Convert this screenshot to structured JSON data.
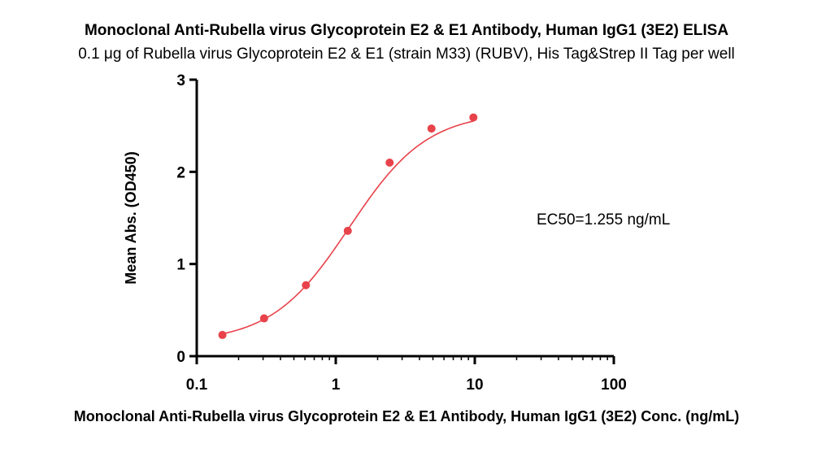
{
  "chart_data": {
    "type": "scatter",
    "title": "Monoclonal Anti-Rubella virus Glycoprotein E2 & E1 Antibody, Human IgG1 (3E2) ELISA",
    "subtitle": "0.1 μg of Rubella virus Glycoprotein E2 & E1 (strain M33) (RUBV), His Tag&Strep II Tag per well",
    "xlabel": "Monoclonal Anti-Rubella virus Glycoprotein E2 & E1 Antibody, Human IgG1 (3E2) Conc. (ng/mL)",
    "ylabel": "Mean Abs. (OD450)",
    "x_scale": "log",
    "xlim": [
      0.1,
      100
    ],
    "ylim": [
      0,
      3
    ],
    "x_ticks": [
      "0.1",
      "1",
      "10",
      "100"
    ],
    "y_ticks": [
      "0",
      "1",
      "2",
      "3"
    ],
    "grid": false,
    "series": [
      {
        "x": [
          0.153,
          0.305,
          0.61,
          1.22,
          2.44,
          4.88,
          9.77
        ],
        "y": [
          0.23,
          0.41,
          0.77,
          1.36,
          2.1,
          2.47,
          2.59
        ],
        "color": "#e8424a"
      }
    ],
    "fit_curve": {
      "model": "4PL",
      "bottom": 0.15,
      "top": 2.65,
      "ec50": 1.255,
      "hill": 1.55,
      "color": "#e8424a"
    },
    "annotation": "EC50=1.255 ng/mL"
  }
}
